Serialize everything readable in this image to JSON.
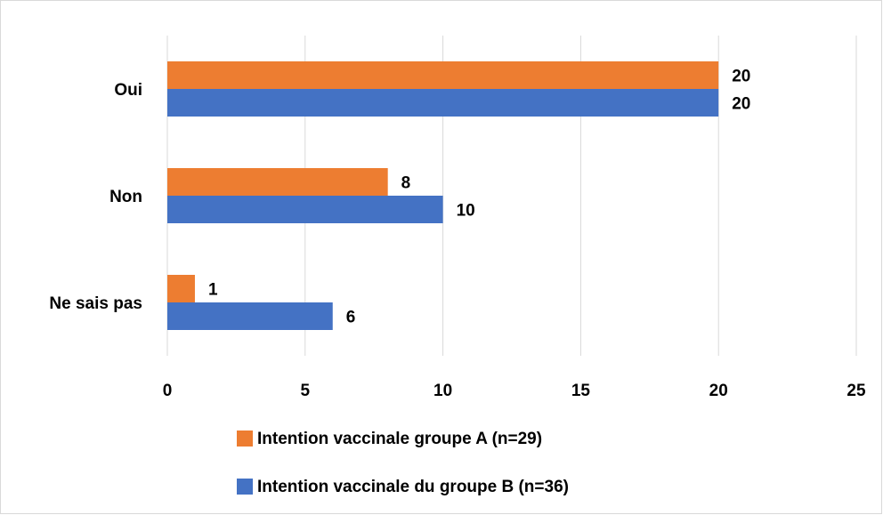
{
  "chart_data": {
    "type": "bar",
    "categories": [
      "Oui",
      "Non",
      "Ne sais pas"
    ],
    "series": [
      {
        "name": "Intention vaccinale groupe A (n=29)",
        "color": "#ed7d31",
        "values": [
          20,
          8,
          1
        ]
      },
      {
        "name": "Intention vaccinale du groupe B (n=36)",
        "color": "#4472c4",
        "values": [
          20,
          10,
          6
        ]
      }
    ],
    "xlim": [
      0,
      25
    ],
    "xticks": [
      0,
      5,
      10,
      15,
      20,
      25
    ],
    "grid": true,
    "legend": "bottom"
  }
}
